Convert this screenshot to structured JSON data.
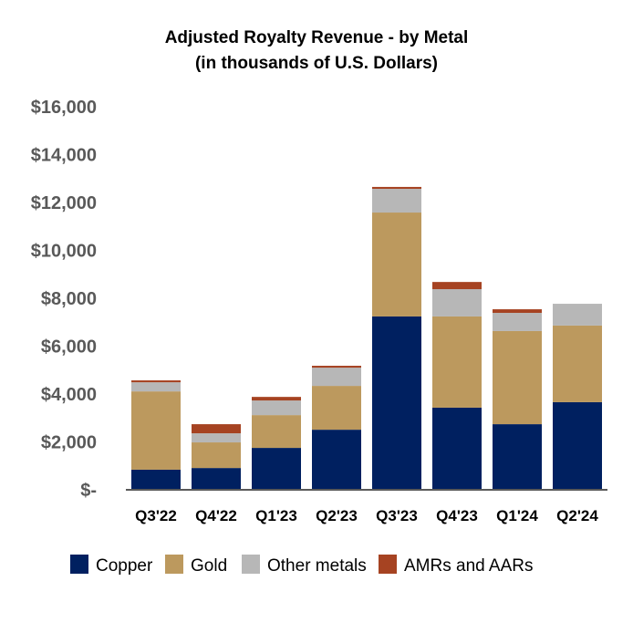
{
  "chart_data": {
    "type": "bar",
    "stacked": true,
    "title": [
      "Adjusted Royalty Revenue - by Metal",
      "(in thousands of U.S. Dollars)"
    ],
    "xlabel": "",
    "ylabel": "",
    "ylim": [
      0,
      16000
    ],
    "yticks": [
      0,
      2000,
      4000,
      6000,
      8000,
      10000,
      12000,
      14000,
      16000
    ],
    "ytick_labels": [
      "$-",
      "$2,000",
      "$4,000",
      "$6,000",
      "$8,000",
      "$10,000",
      "$12,000",
      "$14,000",
      "$16,000"
    ],
    "grid": false,
    "legend_position": "bottom",
    "categories": [
      "Q3'22",
      "Q4'22",
      "Q1'23",
      "Q2'23",
      "Q3'23",
      "Q4'23",
      "Q1'24",
      "Q2'24"
    ],
    "series": [
      {
        "name": "Copper",
        "color": "#002060",
        "values": [
          840,
          910,
          1750,
          2510,
          7240,
          3430,
          2740,
          3660
        ]
      },
      {
        "name": "Gold",
        "color": "#BC995E",
        "values": [
          3270,
          1070,
          1370,
          1830,
          4340,
          3810,
          3890,
          3200
        ]
      },
      {
        "name": "Other metals",
        "color": "#B7B7B7",
        "values": [
          380,
          380,
          610,
          760,
          990,
          1140,
          760,
          910
        ]
      },
      {
        "name": "AMRs and AARs",
        "color": "#A64322",
        "values": [
          80,
          380,
          150,
          80,
          80,
          300,
          150,
          0
        ]
      }
    ]
  }
}
